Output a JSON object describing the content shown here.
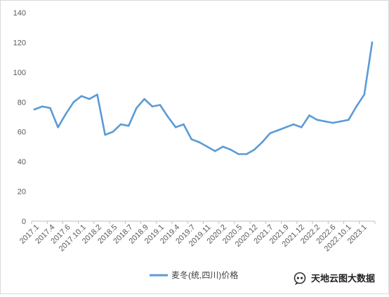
{
  "chart_data": {
    "type": "line",
    "title": "",
    "xlabel": "",
    "ylabel": "",
    "ylim": [
      0,
      140
    ],
    "yticks": [
      0,
      20,
      40,
      60,
      80,
      100,
      120,
      140
    ],
    "grid": false,
    "legend_position": "bottom",
    "color": "#5b9bd5",
    "x_tick_labels": [
      "2017.1",
      "2017.4",
      "2017.6",
      "2017.10.1",
      "2018.2",
      "2018.5",
      "2018.7",
      "2018.9",
      "2019.1",
      "2019.4",
      "2019.7",
      "2019.11",
      "2020.2",
      "2020.5",
      "2020.12",
      "2021.7",
      "2021.9",
      "2021.12",
      "2022.2",
      "2022.6",
      "2022.10.1",
      "2023.1"
    ],
    "series": [
      {
        "name": "麦冬(统,四川)价格",
        "values": [
          75,
          77,
          76,
          63,
          72,
          80,
          84,
          82,
          85,
          58,
          60,
          65,
          64,
          76,
          82,
          77,
          78,
          70,
          63,
          65,
          55,
          53,
          50,
          47,
          50,
          48,
          45,
          45,
          48,
          53,
          59,
          61,
          63,
          65,
          63,
          71,
          68,
          67,
          66,
          67,
          68,
          77,
          85,
          120
        ]
      }
    ]
  },
  "watermark": {
    "text": "天地云图大数据",
    "icon": "wechat-official-account-icon"
  }
}
